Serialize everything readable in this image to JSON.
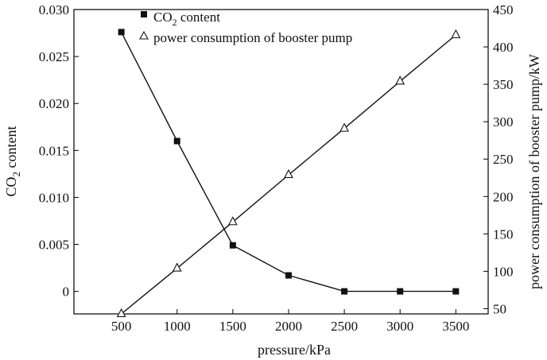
{
  "chart_data": {
    "type": "line",
    "title": "",
    "xlabel": "pressure/kPa",
    "ylabel_left": {
      "main": "CO",
      "sub": "2",
      "rest": " content"
    },
    "ylabel_right": "power consumption of booster pump/kW",
    "x": [
      500,
      1000,
      1500,
      2000,
      2500,
      3000,
      3500
    ],
    "xlim": [
      75,
      3790
    ],
    "x_ticks": [
      "500",
      "1000",
      "1500",
      "2000",
      "2500",
      "3000",
      "3500"
    ],
    "ylim_left": [
      -0.0024,
      0.03
    ],
    "y_ticks_left": [
      "0",
      "0.005",
      "0.010",
      "0.015",
      "0.020",
      "0.025",
      "0.030"
    ],
    "ylim_right": [
      43,
      450
    ],
    "y_ticks_right": [
      "50",
      "100",
      "150",
      "200",
      "250",
      "300",
      "350",
      "400",
      "450"
    ],
    "grid": false,
    "legend_position": "top-left",
    "series": [
      {
        "name_main": "CO",
        "name_sub": "2",
        "name_rest": " content",
        "axis": "left",
        "marker": "square",
        "values": [
          0.0276,
          0.016,
          0.0049,
          0.0017,
          0.0,
          0.0,
          0.0
        ]
      },
      {
        "name": "power consumption of booster pump",
        "axis": "right",
        "marker": "triangle-open",
        "values": [
          43,
          104,
          166,
          229,
          291,
          354,
          416
        ]
      }
    ]
  }
}
